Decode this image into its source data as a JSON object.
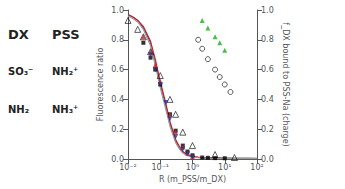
{
  "chart_data": {
    "type": "line",
    "xlabel": "R (m_PSS/m_DX)",
    "ylabel": "Fluorescence ratio",
    "y2label": "f_DX bound to PSS-Na (charge)",
    "log": "x",
    "grid": false,
    "xlim": [
      0.01,
      100.0
    ],
    "xticks": [
      {
        "value": 0.01,
        "label": "10⁻²"
      },
      {
        "value": 0.1,
        "label": "10⁻¹"
      },
      {
        "value": 1,
        "label": "10⁰"
      },
      {
        "value": 10,
        "label": "10¹"
      },
      {
        "value": 100,
        "label": "10²"
      }
    ],
    "ylim": [
      0.0,
      1.0
    ],
    "yticks": [
      {
        "value": 0,
        "label": "0.0"
      },
      0.2,
      0.4,
      0.6,
      0.8,
      {
        "value": 1,
        "label": "1.0"
      }
    ],
    "y2lim": [
      0.0,
      1.0
    ],
    "y2ticks": [
      {
        "value": 0,
        "label": "0.0"
      },
      0.2,
      0.4,
      0.6,
      0.8,
      {
        "value": 1,
        "label": "1.0"
      }
    ],
    "annotations": [
      "DX",
      "PSS",
      "SO₃⁻",
      "NH₂⁺",
      "NH₂",
      "NH₃⁺"
    ],
    "series": [
      {
        "type": "line",
        "line_style": "solid",
        "color": "#3355bb",
        "x": [
          0.01,
          0.015,
          0.02,
          0.03,
          0.05,
          0.07,
          0.1,
          0.15,
          0.2,
          0.3,
          0.4,
          0.5,
          0.7,
          1.0,
          1.5,
          2.0,
          3.0,
          5.0,
          10.0,
          20.0,
          50.0,
          100.0
        ],
        "values": [
          0.97,
          0.95,
          0.93,
          0.88,
          0.78,
          0.65,
          0.5,
          0.35,
          0.24,
          0.12,
          0.07,
          0.045,
          0.025,
          0.015,
          0.01,
          0.008,
          0.007,
          0.006,
          0.005,
          0.004,
          0.004,
          0.003
        ]
      },
      {
        "type": "line",
        "line_style": "solid",
        "color": "#cc2222",
        "x": [
          0.01,
          0.015,
          0.02,
          0.03,
          0.05,
          0.07,
          0.1,
          0.15,
          0.2,
          0.3,
          0.4,
          0.5,
          0.7,
          1.0,
          1.5,
          2.0,
          3.0,
          5.0,
          10.0,
          20.0,
          50.0,
          100.0
        ],
        "values": [
          0.97,
          0.95,
          0.93,
          0.89,
          0.79,
          0.67,
          0.52,
          0.37,
          0.25,
          0.13,
          0.08,
          0.05,
          0.028,
          0.017,
          0.012,
          0.009,
          0.008,
          0.007,
          0.006,
          0.005,
          0.004,
          0.004
        ]
      },
      {
        "type": "line",
        "line_style": "solid",
        "color": "#999999",
        "x": [
          0.01,
          0.015,
          0.02,
          0.03,
          0.05,
          0.07,
          0.1,
          0.15,
          0.2,
          0.3,
          0.4,
          0.5,
          0.7,
          1.0,
          1.5,
          2.0,
          3.0,
          5.0,
          10.0,
          20.0,
          50.0,
          100.0
        ],
        "values": [
          0.96,
          0.94,
          0.92,
          0.87,
          0.76,
          0.63,
          0.48,
          0.33,
          0.22,
          0.11,
          0.065,
          0.04,
          0.022,
          0.013,
          0.009,
          0.007,
          0.006,
          0.005,
          0.004,
          0.003,
          0.003,
          0.003
        ]
      },
      {
        "type": "scatter",
        "marker": "triangle_open",
        "color": "#000000",
        "x": [
          0.01,
          0.02,
          0.03,
          0.05,
          0.1,
          0.2,
          0.3,
          0.5,
          1.0,
          5.0,
          20.0
        ],
        "values": [
          0.93,
          0.87,
          0.82,
          0.72,
          0.56,
          0.4,
          0.3,
          0.18,
          0.09,
          0.03,
          0.01
        ]
      },
      {
        "type": "scatter",
        "marker": "square",
        "color": "#000000",
        "x": [
          0.03,
          0.05,
          0.07,
          0.1,
          0.2,
          0.3,
          0.5,
          0.7,
          1.0,
          2.0,
          3.0,
          5.0,
          10.0
        ],
        "values": [
          0.78,
          0.68,
          0.6,
          0.5,
          0.3,
          0.19,
          0.09,
          0.05,
          0.025,
          0.01,
          0.008,
          0.006,
          0.005
        ]
      },
      {
        "type": "scatter",
        "marker": "triangle",
        "color": "#cc2222",
        "x": [
          0.03,
          0.05,
          0.07,
          0.1,
          0.2,
          0.3,
          0.5,
          0.7,
          1.0
        ],
        "values": [
          0.82,
          0.72,
          0.63,
          0.52,
          0.3,
          0.18,
          0.08,
          0.04,
          0.015
        ]
      },
      {
        "type": "scatter",
        "marker": "triangle_down",
        "color": "#223399",
        "x": [
          0.05,
          0.07,
          0.1,
          0.15,
          0.2,
          0.3,
          0.5,
          0.7,
          1.0
        ],
        "values": [
          0.7,
          0.6,
          0.5,
          0.38,
          0.27,
          0.15,
          0.065,
          0.035,
          0.012
        ]
      },
      {
        "type": "scatter",
        "marker": "triangle",
        "color": "#22aa22",
        "axis": "y2",
        "x": [
          2.0,
          3.0,
          5.0,
          7.0,
          10.0
        ],
        "values": [
          0.93,
          0.88,
          0.82,
          0.78,
          0.73
        ]
      },
      {
        "type": "scatter",
        "marker": "circle_open",
        "color": "#000000",
        "axis": "y2",
        "x": [
          1.5,
          2.0,
          3.0,
          5.0,
          7.0,
          10.0,
          15.0
        ],
        "values": [
          0.8,
          0.74,
          0.67,
          0.6,
          0.55,
          0.5,
          0.45
        ]
      }
    ]
  }
}
